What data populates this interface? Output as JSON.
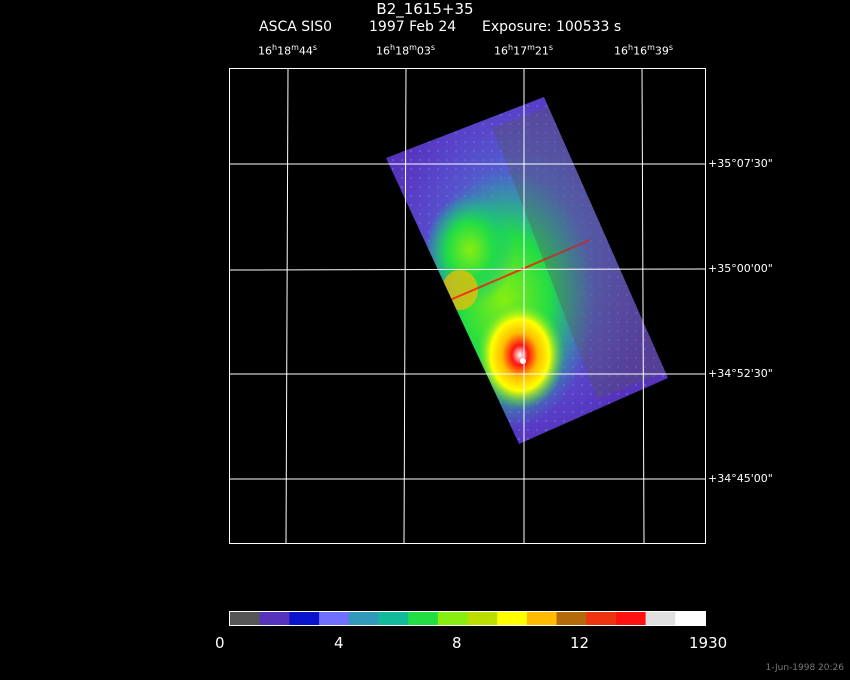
{
  "header": {
    "object_name": "B2_1615+35",
    "instrument": "ASCA SIS0",
    "date": "1997 Feb 24",
    "exposure": "Exposure: 100533 s"
  },
  "axes": {
    "ra_ticks": [
      {
        "h": "16",
        "m": "18",
        "s": "44"
      },
      {
        "h": "16",
        "m": "18",
        "s": "03"
      },
      {
        "h": "16",
        "m": "17",
        "s": "21"
      },
      {
        "h": "16",
        "m": "16",
        "s": "39"
      }
    ],
    "dec_ticks": [
      "+35°07'30\"",
      "+35°00'00\"",
      "+34°52'30\"",
      "+34°45'00\""
    ]
  },
  "colorbar": {
    "labels": [
      "0",
      "4",
      "8",
      "12",
      "1930"
    ],
    "colors": [
      "#555555",
      "#5533bb",
      "#0a14cc",
      "#7070ff",
      "#3399bb",
      "#11bb99",
      "#22dd44",
      "#88ee11",
      "#bbdd00",
      "#ffff00",
      "#ffbb00",
      "#b36a0a",
      "#ee3311",
      "#ff1111",
      "#e0e0e0",
      "#ffffff"
    ]
  },
  "footer": {
    "timestamp": "1-Jun-1998 20:26"
  }
}
